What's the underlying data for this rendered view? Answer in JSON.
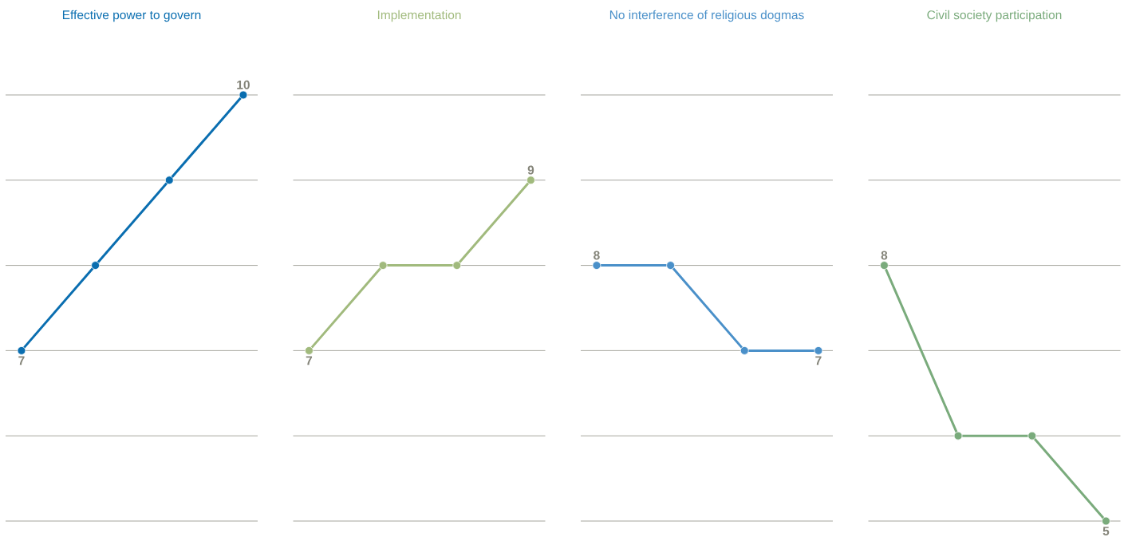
{
  "chart_data": [
    {
      "type": "line",
      "title": "Effective power to govern",
      "categories": [
        null,
        null,
        null,
        null
      ],
      "series": [
        {
          "color": "#0a6eb0",
          "values": [
            7,
            8,
            9,
            10
          ],
          "value_labels": [
            "7",
            null,
            null,
            "10"
          ]
        }
      ],
      "marker": "circle",
      "grid": "y",
      "ylim": [
        5,
        10
      ],
      "yticks": [
        {
          "value": 5,
          "label": null
        },
        {
          "value": 6,
          "label": null
        },
        {
          "value": 7,
          "label": null
        },
        {
          "value": 8,
          "label": null
        },
        {
          "value": 9,
          "label": null
        },
        {
          "value": 10,
          "label": null
        }
      ],
      "tick_labels": false
    },
    {
      "type": "line",
      "title": "Implementation",
      "categories": [
        null,
        null,
        null,
        null
      ],
      "series": [
        {
          "color": "#a1ba7d",
          "values": [
            7,
            8,
            8,
            9
          ],
          "value_labels": [
            "7",
            null,
            null,
            "9"
          ]
        }
      ],
      "marker": "circle",
      "grid": "y",
      "ylim": [
        5,
        10
      ],
      "yticks": [
        {
          "value": 5,
          "label": null
        },
        {
          "value": 6,
          "label": null
        },
        {
          "value": 7,
          "label": null
        },
        {
          "value": 8,
          "label": null
        },
        {
          "value": 9,
          "label": null
        },
        {
          "value": 10,
          "label": null
        }
      ],
      "tick_labels": false
    },
    {
      "type": "line",
      "title": "No interference of religious dogmas",
      "categories": [
        null,
        null,
        null,
        null
      ],
      "series": [
        {
          "color": "#4a90c9",
          "values": [
            8,
            8,
            7,
            7
          ],
          "value_labels": [
            "8",
            null,
            null,
            "7"
          ]
        }
      ],
      "marker": "circle",
      "grid": "y",
      "ylim": [
        5,
        10
      ],
      "yticks": [
        {
          "value": 5,
          "label": null
        },
        {
          "value": 6,
          "label": null
        },
        {
          "value": 7,
          "label": null
        },
        {
          "value": 8,
          "label": null
        },
        {
          "value": 9,
          "label": null
        },
        {
          "value": 10,
          "label": null
        }
      ],
      "tick_labels": false
    },
    {
      "type": "line",
      "title": "Civil society participation",
      "categories": [
        null,
        null,
        null,
        null
      ],
      "series": [
        {
          "color": "#7aab7c",
          "values": [
            8,
            6,
            6,
            5
          ],
          "value_labels": [
            "8",
            null,
            null,
            "5"
          ]
        }
      ],
      "marker": "circle",
      "grid": "y",
      "ylim": [
        5,
        10
      ],
      "yticks": [
        {
          "value": 5,
          "label": null
        },
        {
          "value": 6,
          "label": null
        },
        {
          "value": 7,
          "label": null
        },
        {
          "value": 8,
          "label": null
        },
        {
          "value": 9,
          "label": null
        },
        {
          "value": 10,
          "label": null
        }
      ],
      "tick_labels": false
    }
  ]
}
